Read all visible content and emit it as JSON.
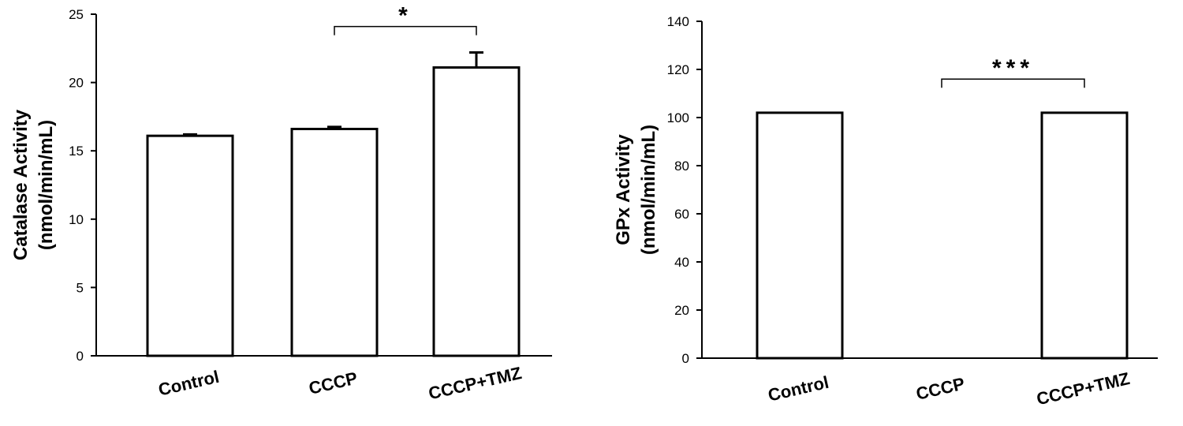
{
  "chart_data": [
    {
      "type": "bar",
      "categories": [
        "Control",
        "CCCP",
        "CCCP+TMZ"
      ],
      "values": [
        16.1,
        16.6,
        21.1
      ],
      "errors": [
        0.1,
        0.15,
        1.1
      ],
      "ylabel_line1": "Catalase Activity",
      "ylabel_line2": "(nmol/min/mL)",
      "ylim": [
        0,
        25
      ],
      "yticks": [
        0,
        5,
        10,
        15,
        20,
        25
      ],
      "significance": {
        "from": 1,
        "to": 2,
        "label": "*",
        "level": 24.1
      }
    },
    {
      "type": "bar",
      "categories": [
        "Control",
        "CCCP",
        "CCCP+TMZ"
      ],
      "values": [
        102,
        0,
        102
      ],
      "errors": [
        0,
        0,
        0
      ],
      "ylabel_line1": "GPx Activity",
      "ylabel_line2": "(nmol/min/mL)",
      "ylim": [
        0,
        140
      ],
      "yticks": [
        0,
        20,
        40,
        60,
        80,
        100,
        120,
        140
      ],
      "significance": {
        "from": 1,
        "to": 2,
        "label": "***",
        "level": 116
      }
    }
  ]
}
